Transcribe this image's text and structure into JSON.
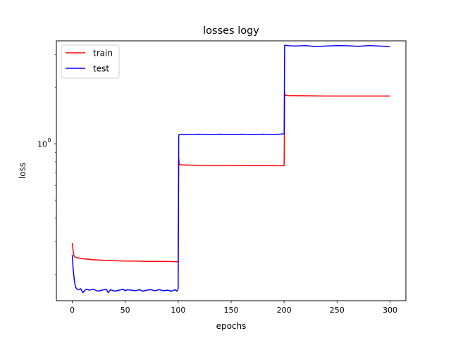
{
  "chart_data": {
    "type": "line",
    "title": "losses logy",
    "xlabel": "epochs",
    "ylabel": "loss",
    "x_scale": "linear",
    "y_scale": "log",
    "xlim": [
      -15,
      315
    ],
    "ylim": [
      0.145,
      3.55
    ],
    "x_ticks": [
      0,
      50,
      100,
      150,
      200,
      250,
      300
    ],
    "x_tick_labels": [
      "0",
      "50",
      "100",
      "150",
      "200",
      "250",
      "300"
    ],
    "y_major_ticks": [
      1.0
    ],
    "y_tick_labels": [
      "10",
      "0"
    ],
    "grid": false,
    "legend": {
      "position": "top-left",
      "entries": [
        "train",
        "test"
      ]
    },
    "series": [
      {
        "name": "train",
        "color": "#ff0000",
        "x": [
          0,
          1,
          2,
          4,
          6,
          10,
          20,
          30,
          40,
          50,
          60,
          70,
          80,
          90,
          99,
          100,
          100.5,
          101,
          102,
          105,
          120,
          140,
          160,
          180,
          199,
          200,
          200.5,
          201,
          203,
          220,
          240,
          260,
          280,
          300
        ],
        "y": [
          0.295,
          0.262,
          0.249,
          0.246,
          0.245,
          0.243,
          0.24,
          0.238,
          0.237,
          0.236,
          0.236,
          0.235,
          0.235,
          0.235,
          0.234,
          0.234,
          0.84,
          0.775,
          0.772,
          0.77,
          0.767,
          0.766,
          0.765,
          0.764,
          0.763,
          0.763,
          1.88,
          1.82,
          1.81,
          1.805,
          1.8,
          1.8,
          1.8,
          1.8
        ]
      },
      {
        "name": "test",
        "color": "#0000ff",
        "x": [
          0,
          1,
          2,
          3,
          4,
          6,
          8,
          10,
          12,
          14,
          16,
          18,
          20,
          24,
          28,
          32,
          34,
          36,
          40,
          44,
          48,
          50,
          52,
          56,
          60,
          64,
          66,
          70,
          74,
          78,
          82,
          86,
          90,
          94,
          97,
          99,
          100,
          100.5,
          101,
          105,
          110,
          120,
          130,
          140,
          150,
          160,
          170,
          180,
          190,
          195,
          199,
          200,
          200.5,
          201,
          205,
          210,
          220,
          230,
          240,
          250,
          260,
          270,
          280,
          290,
          300
        ],
        "y": [
          0.255,
          0.21,
          0.185,
          0.172,
          0.168,
          0.166,
          0.168,
          0.16,
          0.165,
          0.167,
          0.165,
          0.166,
          0.167,
          0.163,
          0.165,
          0.167,
          0.16,
          0.166,
          0.163,
          0.165,
          0.167,
          0.164,
          0.166,
          0.165,
          0.164,
          0.166,
          0.163,
          0.165,
          0.166,
          0.164,
          0.166,
          0.164,
          0.165,
          0.163,
          0.166,
          0.163,
          0.168,
          1.11,
          1.12,
          1.125,
          1.12,
          1.125,
          1.12,
          1.125,
          1.12,
          1.125,
          1.12,
          1.125,
          1.12,
          1.125,
          1.13,
          1.13,
          3.35,
          3.36,
          3.34,
          3.33,
          3.35,
          3.31,
          3.33,
          3.35,
          3.34,
          3.32,
          3.35,
          3.33,
          3.3
        ]
      }
    ]
  }
}
